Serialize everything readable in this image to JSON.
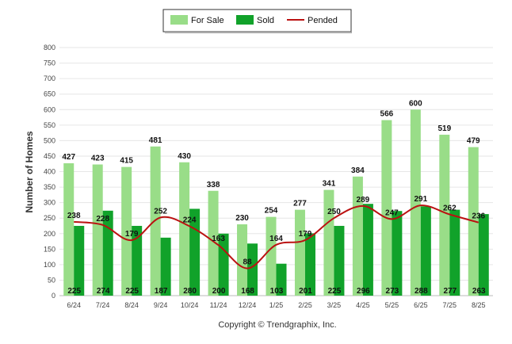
{
  "chart_data": {
    "type": "bar",
    "categories": [
      "6/24",
      "7/24",
      "8/24",
      "9/24",
      "10/24",
      "11/24",
      "12/24",
      "1/25",
      "2/25",
      "3/25",
      "4/25",
      "5/25",
      "6/25",
      "7/25",
      "8/25"
    ],
    "series": [
      {
        "name": "For Sale",
        "type": "bar",
        "color": "#99dd88",
        "values": [
          427,
          423,
          415,
          481,
          430,
          338,
          230,
          254,
          277,
          341,
          384,
          566,
          600,
          519,
          479
        ]
      },
      {
        "name": "Sold",
        "type": "bar",
        "color": "#11a22a",
        "values": [
          225,
          274,
          225,
          187,
          280,
          200,
          168,
          103,
          201,
          225,
          296,
          273,
          288,
          277,
          263
        ]
      },
      {
        "name": "Pended",
        "type": "line",
        "color": "#bb1111",
        "values": [
          238,
          228,
          179,
          252,
          224,
          163,
          88,
          164,
          179,
          250,
          289,
          247,
          291,
          262,
          236
        ]
      }
    ],
    "xlabel": "",
    "ylabel": "Number of Homes",
    "ylim": [
      0,
      800
    ],
    "yticks": [
      0,
      50,
      100,
      150,
      200,
      250,
      300,
      350,
      400,
      450,
      500,
      550,
      600,
      650,
      700,
      750,
      800
    ],
    "grid": true,
    "legend_position": "top-center"
  },
  "footer": {
    "copyright": "Copyright © Trendgraphix, Inc."
  }
}
